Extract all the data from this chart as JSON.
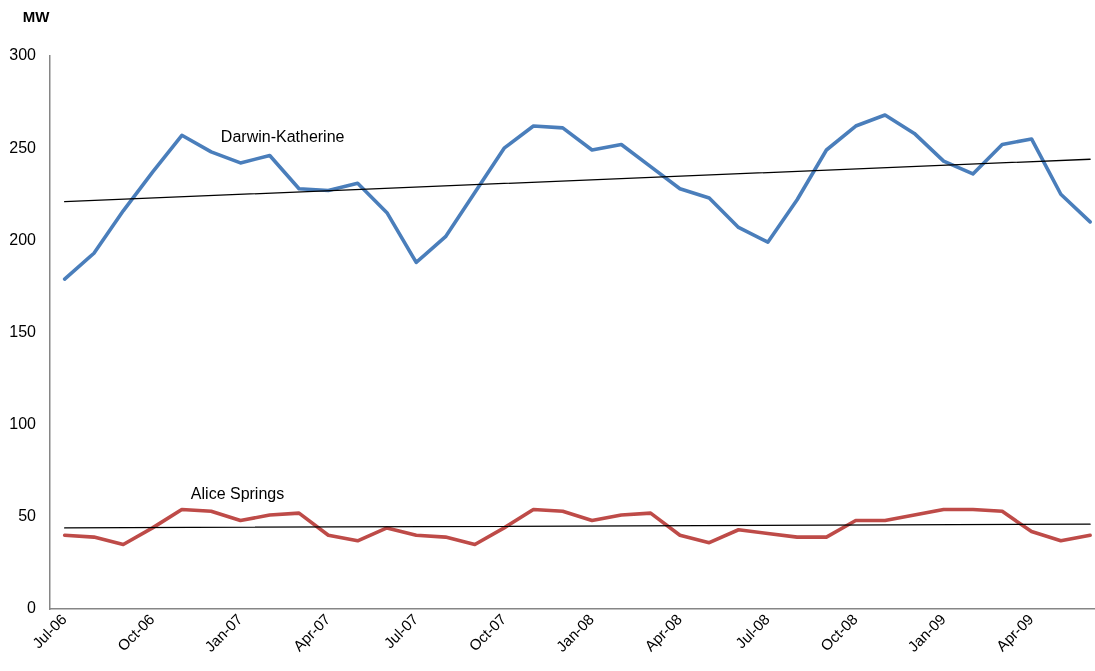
{
  "chart_data": {
    "type": "line",
    "ylabel": "MW",
    "x": [
      "2006-07",
      "2006-08",
      "2006-09",
      "2006-10",
      "2006-11",
      "2006-12",
      "2007-01",
      "2007-02",
      "2007-03",
      "2007-04",
      "2007-05",
      "2007-06",
      "2007-07",
      "2007-08",
      "2007-09",
      "2007-10",
      "2007-11",
      "2007-12",
      "2008-01",
      "2008-02",
      "2008-03",
      "2008-04",
      "2008-05",
      "2008-06",
      "2008-07",
      "2008-08",
      "2008-09",
      "2008-10",
      "2008-11",
      "2008-12",
      "2009-01",
      "2009-02",
      "2009-03",
      "2009-04",
      "2009-05",
      "2009-06"
    ],
    "xlim": [
      "2006-06-16",
      "2009-06-06"
    ],
    "xticks": [
      {
        "value": "2006-07",
        "label": "Jul-06"
      },
      {
        "value": "2006-10",
        "label": "Oct-06"
      },
      {
        "value": "2007-01",
        "label": "Jan-07"
      },
      {
        "value": "2007-04",
        "label": "Apr-07"
      },
      {
        "value": "2007-07",
        "label": "Jul-07"
      },
      {
        "value": "2007-10",
        "label": "Oct-07"
      },
      {
        "value": "2008-01",
        "label": "Jan-08"
      },
      {
        "value": "2008-04",
        "label": "Apr-08"
      },
      {
        "value": "2008-07",
        "label": "Jul-08"
      },
      {
        "value": "2008-10",
        "label": "Oct-08"
      },
      {
        "value": "2009-01",
        "label": "Jan-09"
      },
      {
        "value": "2009-04",
        "label": "Apr-09"
      }
    ],
    "ylim": [
      0,
      300
    ],
    "yticks": [
      0,
      50,
      100,
      150,
      200,
      250,
      300
    ],
    "grid": false,
    "legend": false,
    "marker": "none",
    "line_style": "solid",
    "series": [
      {
        "name": "Darwin-Katherine",
        "color": "#4a7ebb",
        "values": [
          179,
          193,
          216,
          237,
          257,
          248,
          242,
          246,
          228,
          227,
          231,
          215,
          188,
          202,
          226,
          250,
          262,
          261,
          249,
          252,
          240,
          228,
          223,
          207,
          199,
          222,
          249,
          262,
          268,
          258,
          243,
          236,
          252,
          255,
          225,
          210
        ]
      },
      {
        "name": "Alice Springs",
        "color": "#be4b48",
        "values": [
          40,
          39,
          35,
          44,
          54,
          53,
          48,
          51,
          52,
          40,
          37,
          44,
          40,
          39,
          35,
          44,
          54,
          53,
          48,
          51,
          52,
          40,
          36,
          43,
          41,
          39,
          39,
          48,
          48,
          51,
          54,
          54,
          53,
          42,
          37,
          40
        ]
      },
      {
        "color": "#000000",
        "x": [
          "2006-07",
          "2009-06"
        ],
        "values": [
          221,
          244
        ]
      },
      {
        "color": "#000000",
        "x": [
          "2006-07",
          "2009-06"
        ],
        "values": [
          44,
          46
        ]
      }
    ]
  }
}
